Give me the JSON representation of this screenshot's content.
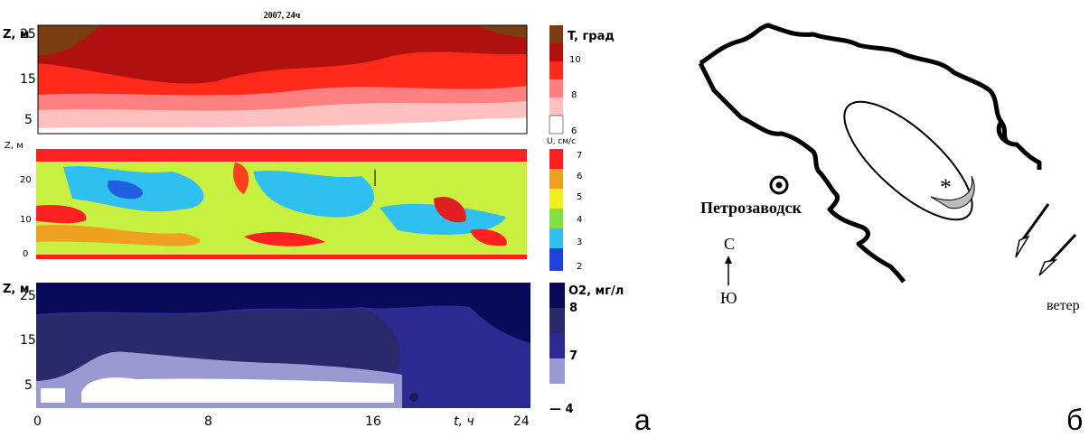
{
  "panel_a": {
    "title": "2007, 24ч",
    "temperature": {
      "axis_label": "Z, м",
      "yticks": [
        "25",
        "15",
        "5"
      ],
      "colorbar_title": "T, град",
      "colorbar_ticks": [
        "10",
        "8",
        "6"
      ]
    },
    "velocity": {
      "axis_label": "Z, м",
      "yticks": [
        "20",
        "10",
        "0"
      ],
      "colorbar_title": "U, см/с",
      "colorbar_ticks": [
        "7",
        "6",
        "5",
        "4",
        "3",
        "2"
      ]
    },
    "oxygen": {
      "axis_label": "Z, м",
      "yticks": [
        "25",
        "15",
        "5"
      ],
      "colorbar_title": "O2, мг/л",
      "colorbar_ticks": [
        "8",
        "7",
        "— 4"
      ]
    },
    "xticks": [
      "0",
      "8",
      "16",
      "24"
    ],
    "x_label": "t, ч",
    "letter": "а"
  },
  "panel_b": {
    "city": "Петрозаводск",
    "north": "С",
    "south": "Ю",
    "wind": "ветер",
    "marker": "*",
    "letter": "б"
  }
}
